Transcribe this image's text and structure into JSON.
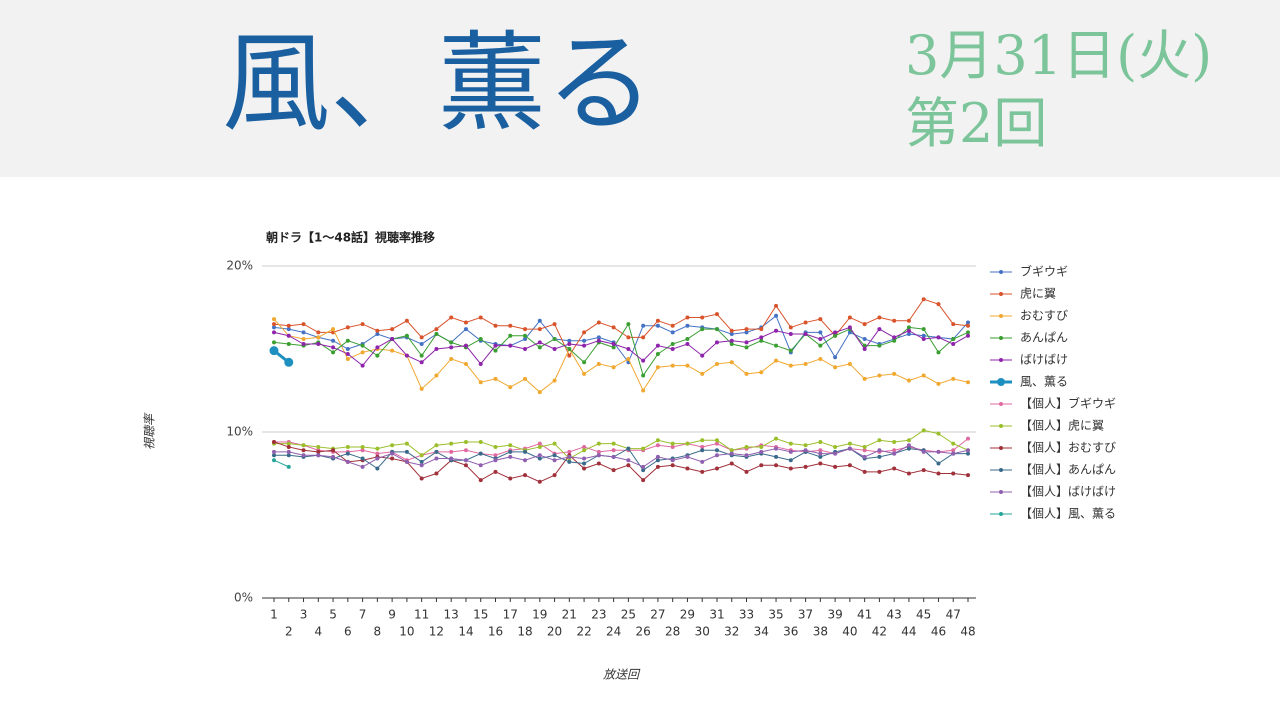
{
  "header": {
    "title": "風、薫る",
    "date": "3月31日(火)",
    "episode": "第2回"
  },
  "chart_data": {
    "type": "line",
    "title": "朝ドラ【1〜48話】視聴率推移",
    "x_label": "放送回",
    "y_label": "視聴率",
    "categories": [
      1,
      2,
      3,
      4,
      5,
      6,
      7,
      8,
      9,
      10,
      11,
      12,
      13,
      14,
      15,
      16,
      17,
      18,
      19,
      20,
      21,
      22,
      23,
      24,
      25,
      26,
      27,
      28,
      29,
      30,
      31,
      32,
      33,
      34,
      35,
      36,
      37,
      38,
      39,
      40,
      41,
      42,
      43,
      44,
      45,
      46,
      47,
      48
    ],
    "ylim": [
      0,
      20
    ],
    "yticks": [
      {
        "value": 0,
        "label": "0%"
      },
      {
        "value": 10,
        "label": "10%"
      },
      {
        "value": 20,
        "label": "20%"
      }
    ],
    "grid": true,
    "legend": "right",
    "series": [
      {
        "name": "ブギウギ",
        "color": "#4472c4",
        "values": [
          16.3,
          16.2,
          16.0,
          15.7,
          15.5,
          15.0,
          15.3,
          15.9,
          15.6,
          15.7,
          15.3,
          15.9,
          15.4,
          16.2,
          15.5,
          15.3,
          15.2,
          15.6,
          16.7,
          15.6,
          15.5,
          15.5,
          15.7,
          15.4,
          14.2,
          16.4,
          16.4,
          16.0,
          16.4,
          16.3,
          16.2,
          15.9,
          16.0,
          16.3,
          17.0,
          14.8,
          16.0,
          16.0,
          14.5,
          16.0,
          15.6,
          15.3,
          15.6,
          15.9,
          15.8,
          15.7,
          15.6,
          16.6
        ]
      },
      {
        "name": "虎に翼",
        "color": "#d9532b",
        "values": [
          16.5,
          16.4,
          16.5,
          16.0,
          16.0,
          16.3,
          16.5,
          16.1,
          16.2,
          16.7,
          15.7,
          16.2,
          16.9,
          16.6,
          16.9,
          16.4,
          16.4,
          16.2,
          16.2,
          16.5,
          14.6,
          16.0,
          16.6,
          16.3,
          15.7,
          15.7,
          16.7,
          16.4,
          16.9,
          16.9,
          17.1,
          16.1,
          16.2,
          16.2,
          17.6,
          16.3,
          16.6,
          16.8,
          15.8,
          16.9,
          16.5,
          16.9,
          16.7,
          16.7,
          18.0,
          17.7,
          16.5,
          16.4
        ]
      },
      {
        "name": "おむすび",
        "color": "#f0a830",
        "values": [
          16.8,
          15.8,
          15.6,
          15.7,
          16.2,
          14.4,
          14.8,
          15.0,
          14.9,
          14.6,
          12.6,
          13.4,
          14.4,
          14.1,
          13.0,
          13.2,
          12.7,
          13.2,
          12.4,
          13.1,
          15.0,
          13.5,
          14.1,
          13.9,
          14.4,
          12.5,
          13.9,
          14.0,
          14.0,
          13.5,
          14.1,
          14.2,
          13.5,
          13.6,
          14.3,
          14.0,
          14.1,
          14.4,
          13.9,
          14.1,
          13.2,
          13.4,
          13.5,
          13.1,
          13.4,
          12.9,
          13.2,
          13.0
        ]
      },
      {
        "name": "あんぱん",
        "color": "#3a9e32",
        "values": [
          15.4,
          15.3,
          15.2,
          15.4,
          14.8,
          15.5,
          15.2,
          14.6,
          15.6,
          15.8,
          14.6,
          15.9,
          15.4,
          15.1,
          15.6,
          14.9,
          15.8,
          15.8,
          15.1,
          15.6,
          15.0,
          14.2,
          15.4,
          15.1,
          16.5,
          13.4,
          14.7,
          15.3,
          15.6,
          16.2,
          16.2,
          15.3,
          15.1,
          15.5,
          15.2,
          14.9,
          15.9,
          15.2,
          15.8,
          16.2,
          15.2,
          15.2,
          15.5,
          16.3,
          16.2,
          14.8,
          15.6,
          16.0
        ]
      },
      {
        "name": "ばけばけ",
        "color": "#8e24aa",
        "values": [
          16.0,
          15.8,
          15.3,
          15.3,
          15.1,
          14.7,
          14.0,
          15.1,
          15.6,
          14.6,
          14.2,
          15.0,
          15.1,
          15.2,
          14.1,
          15.2,
          15.2,
          15.0,
          15.4,
          15.0,
          15.3,
          15.2,
          15.5,
          15.3,
          15.0,
          14.3,
          15.2,
          15.0,
          15.3,
          14.6,
          15.4,
          15.5,
          15.4,
          15.7,
          16.1,
          15.9,
          15.9,
          15.6,
          16.0,
          16.3,
          15.0,
          16.2,
          15.7,
          16.1,
          15.6,
          15.7,
          15.3,
          15.8
        ]
      },
      {
        "name": "風、薫る",
        "color": "#1e90c0",
        "values": [
          14.9,
          14.2,
          null,
          null,
          null,
          null,
          null,
          null,
          null,
          null,
          null,
          null,
          null,
          null,
          null,
          null,
          null,
          null,
          null,
          null,
          null,
          null,
          null,
          null,
          null,
          null,
          null,
          null,
          null,
          null,
          null,
          null,
          null,
          null,
          null,
          null,
          null,
          null,
          null,
          null,
          null,
          null,
          null,
          null,
          null,
          null,
          null,
          null
        ]
      },
      {
        "name": "【個人】ブギウギ",
        "color": "#e06aa0",
        "values": [
          9.4,
          9.4,
          9.2,
          8.9,
          8.8,
          8.8,
          8.9,
          8.7,
          8.8,
          8.3,
          8.6,
          8.8,
          8.8,
          8.9,
          8.7,
          8.6,
          8.9,
          9.0,
          9.3,
          8.7,
          8.8,
          9.1,
          8.8,
          8.9,
          8.9,
          8.9,
          9.2,
          9.1,
          9.3,
          9.1,
          9.3,
          8.9,
          9.0,
          9.2,
          9.1,
          8.9,
          8.8,
          8.9,
          8.7,
          9.0,
          8.9,
          8.8,
          8.9,
          9.1,
          8.9,
          8.8,
          8.9,
          9.6
        ]
      },
      {
        "name": "【個人】虎に翼",
        "color": "#9abf2a",
        "values": [
          9.3,
          9.3,
          9.2,
          9.1,
          9.0,
          9.1,
          9.1,
          9.0,
          9.2,
          9.3,
          8.6,
          9.2,
          9.3,
          9.4,
          9.4,
          9.1,
          9.2,
          8.9,
          9.1,
          9.3,
          8.4,
          8.9,
          9.3,
          9.3,
          9.0,
          9.0,
          9.5,
          9.3,
          9.3,
          9.5,
          9.5,
          8.9,
          9.1,
          9.1,
          9.6,
          9.3,
          9.2,
          9.4,
          9.1,
          9.3,
          9.1,
          9.5,
          9.4,
          9.5,
          10.1,
          9.9,
          9.3,
          8.9
        ]
      },
      {
        "name": "【個人】おむすび",
        "color": "#a0303a",
        "values": [
          9.4,
          9.1,
          8.9,
          8.8,
          8.9,
          8.2,
          8.3,
          8.5,
          8.4,
          8.2,
          7.2,
          7.5,
          8.3,
          8.0,
          7.1,
          7.6,
          7.2,
          7.4,
          7.0,
          7.4,
          8.6,
          7.8,
          8.1,
          7.7,
          8.0,
          7.1,
          7.9,
          8.0,
          7.8,
          7.6,
          7.8,
          8.1,
          7.6,
          8.0,
          8.0,
          7.8,
          7.9,
          8.1,
          7.9,
          8.0,
          7.6,
          7.6,
          7.8,
          7.5,
          7.7,
          7.5,
          7.5,
          7.4
        ]
      },
      {
        "name": "【個人】あんぱん",
        "color": "#3a6a8a",
        "values": [
          8.6,
          8.6,
          8.5,
          8.6,
          8.4,
          8.7,
          8.4,
          7.8,
          8.8,
          8.8,
          8.2,
          8.8,
          8.3,
          8.3,
          8.7,
          8.4,
          8.8,
          8.8,
          8.4,
          8.6,
          8.2,
          8.1,
          8.6,
          8.5,
          9.0,
          7.7,
          8.3,
          8.4,
          8.6,
          8.9,
          8.9,
          8.6,
          8.5,
          8.7,
          8.5,
          8.3,
          8.8,
          8.5,
          8.8,
          9.0,
          8.4,
          8.5,
          8.7,
          9.0,
          8.9,
          8.1,
          8.7,
          8.7
        ]
      },
      {
        "name": "【個人】ばけばけ",
        "color": "#9060b0",
        "values": [
          8.8,
          8.8,
          8.6,
          8.6,
          8.5,
          8.2,
          7.9,
          8.4,
          8.7,
          8.2,
          8.0,
          8.4,
          8.4,
          8.3,
          8.0,
          8.3,
          8.5,
          8.3,
          8.6,
          8.3,
          8.5,
          8.4,
          8.6,
          8.5,
          8.3,
          7.9,
          8.5,
          8.3,
          8.5,
          8.2,
          8.6,
          8.7,
          8.6,
          8.8,
          9.0,
          8.8,
          8.9,
          8.7,
          8.7,
          9.0,
          8.5,
          8.9,
          8.7,
          9.2,
          8.8,
          8.8,
          8.7,
          8.9
        ]
      },
      {
        "name": "【個人】風、薫る",
        "color": "#26a69a",
        "values": [
          8.3,
          7.9,
          null,
          null,
          null,
          null,
          null,
          null,
          null,
          null,
          null,
          null,
          null,
          null,
          null,
          null,
          null,
          null,
          null,
          null,
          null,
          null,
          null,
          null,
          null,
          null,
          null,
          null,
          null,
          null,
          null,
          null,
          null,
          null,
          null,
          null,
          null,
          null,
          null,
          null,
          null,
          null,
          null,
          null,
          null,
          null,
          null,
          null
        ]
      }
    ]
  }
}
